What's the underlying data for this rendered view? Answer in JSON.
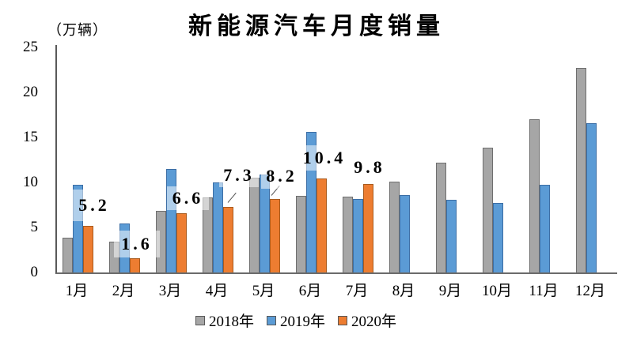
{
  "title": "新能源汽车月度销量",
  "unit_label": "（万辆）",
  "chart_data": {
    "type": "bar",
    "title": "新能源汽车月度销量",
    "ylabel": "（万辆）",
    "xlabel": "",
    "ylim": [
      0,
      25
    ],
    "y_ticks": [
      0,
      5,
      10,
      15,
      20,
      25
    ],
    "grid": false,
    "legend_position": "bottom",
    "categories": [
      "1月",
      "2月",
      "3月",
      "4月",
      "5月",
      "6月",
      "7月",
      "8月",
      "9月",
      "10月",
      "11月",
      "12月"
    ],
    "series": [
      {
        "name": "2018年",
        "color": "#a6a6a6",
        "border": "#6e6e6e",
        "values": [
          3.9,
          3.4,
          6.8,
          8.3,
          10.5,
          8.5,
          8.4,
          10.1,
          12.2,
          13.9,
          17.0,
          22.7
        ]
      },
      {
        "name": "2019年",
        "color": "#5b9bd5",
        "border": "#3c6ea5",
        "values": [
          9.7,
          5.4,
          11.5,
          10.0,
          10.9,
          15.6,
          8.2,
          8.6,
          8.1,
          7.7,
          9.7,
          16.6
        ]
      },
      {
        "name": "2020年",
        "color": "#ed7d31",
        "border": "#a85b1e",
        "values": [
          5.2,
          1.6,
          6.6,
          7.3,
          8.2,
          10.4,
          9.8
        ]
      }
    ],
    "annotations": [
      {
        "text": "5.2",
        "category": "1月",
        "series": "2020年"
      },
      {
        "text": "1.6",
        "category": "2月",
        "series": "2020年"
      },
      {
        "text": "6.6",
        "category": "3月",
        "series": "2020年"
      },
      {
        "text": "7.3",
        "category": "4月",
        "series": "2020年"
      },
      {
        "text": "8.2",
        "category": "5月",
        "series": "2020年"
      },
      {
        "text": "10.4",
        "category": "6月",
        "series": "2020年"
      },
      {
        "text": "9.8",
        "category": "7月",
        "series": "2020年"
      }
    ]
  }
}
